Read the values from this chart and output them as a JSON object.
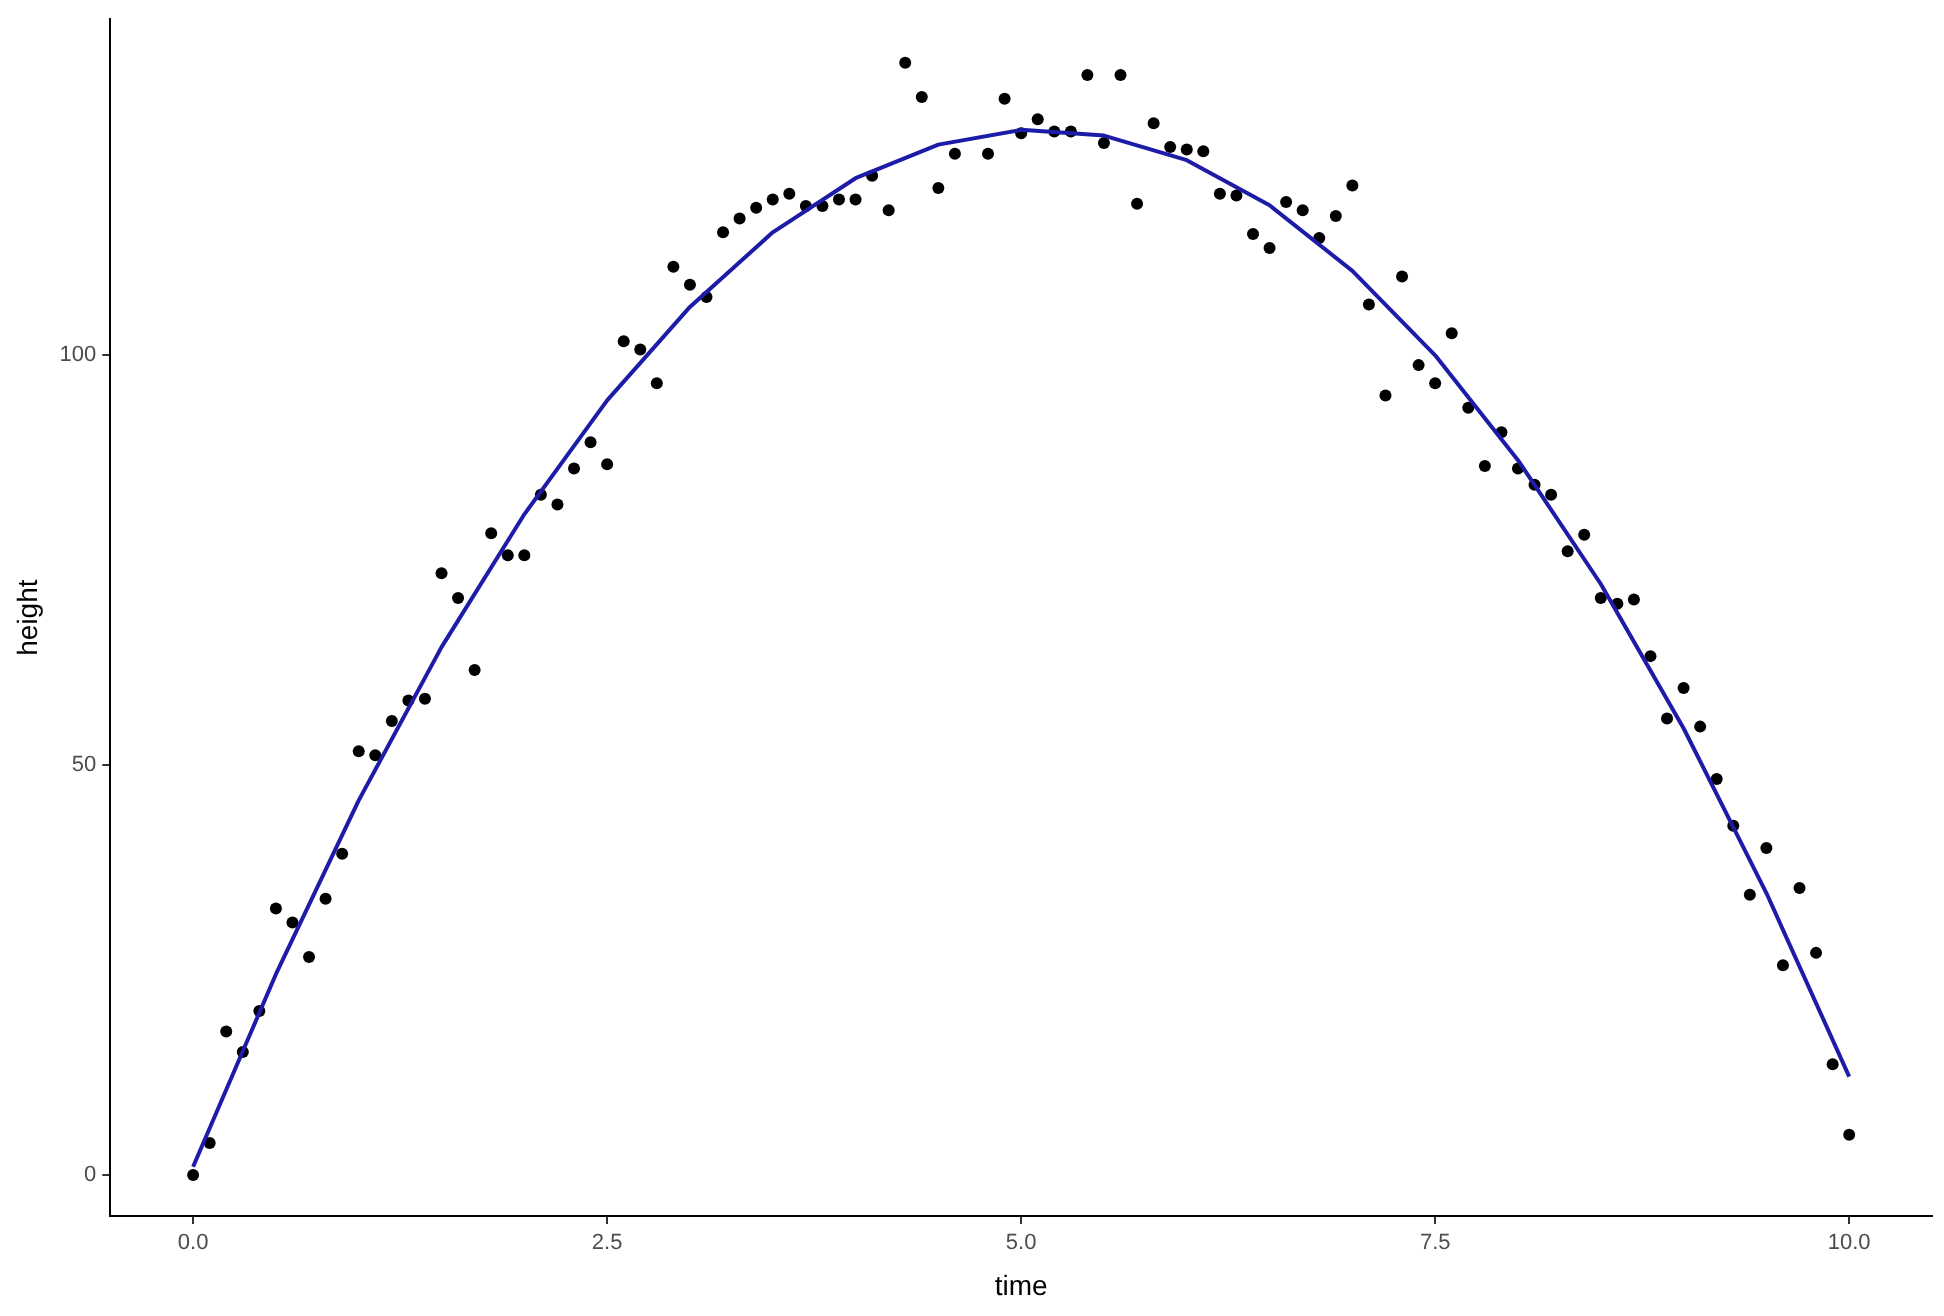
{
  "chart_data": {
    "type": "scatter",
    "xlabel": "time",
    "ylabel": "height",
    "xlim": [
      -0.5,
      10.5
    ],
    "ylim": [
      -5,
      141
    ],
    "xticks": [
      {
        "value": 0,
        "label": "0.0"
      },
      {
        "value": 2.5,
        "label": "2.5"
      },
      {
        "value": 5,
        "label": "5.0"
      },
      {
        "value": 7.5,
        "label": "7.5"
      },
      {
        "value": 10,
        "label": "10.0"
      }
    ],
    "yticks": [
      0,
      50,
      100
    ],
    "grid": false,
    "legend": false,
    "series": [
      {
        "type": "scatter",
        "color": "#000000",
        "marker": "circle",
        "x": [
          0,
          0.1,
          0.2,
          0.3,
          0.4,
          0.5,
          0.6,
          0.7,
          0.8,
          0.9,
          1,
          1.1,
          1.2,
          1.3,
          1.4,
          1.5,
          1.6,
          1.7,
          1.8,
          1.9,
          2,
          2.1,
          2.2,
          2.3,
          2.4,
          2.5,
          2.6,
          2.7,
          2.8,
          2.9,
          3,
          3.1,
          3.2,
          3.3,
          3.4,
          3.5,
          3.6,
          3.7,
          3.8,
          3.9,
          4,
          4.1,
          4.2,
          4.3,
          4.4,
          4.5,
          4.6,
          4.8,
          4.9,
          5,
          5.1,
          5.2,
          5.3,
          5.4,
          5.5,
          5.6,
          5.7,
          5.8,
          5.9,
          6,
          6.1,
          6.2,
          6.3,
          6.4,
          6.5,
          6.6,
          6.7,
          6.8,
          6.9,
          7,
          7.1,
          7.2,
          7.3,
          7.4,
          7.5,
          7.6,
          7.7,
          7.8,
          7.9,
          8,
          8.1,
          8.2,
          8.3,
          8.4,
          8.5,
          8.6,
          8.7,
          8.8,
          8.9,
          9,
          9.1,
          9.2,
          9.3,
          9.4,
          9.5,
          9.6,
          9.7,
          9.8,
          9.9,
          10
        ],
        "values": [
          0,
          3.9,
          17.5,
          15.0,
          20.0,
          32.5,
          30.8,
          26.6,
          33.7,
          39.2,
          51.7,
          51.2,
          55.4,
          57.9,
          58.1,
          73.4,
          70.4,
          61.6,
          78.3,
          75.6,
          75.6,
          83.0,
          81.8,
          86.2,
          89.4,
          86.7,
          101.7,
          100.7,
          96.6,
          110.8,
          108.6,
          107.1,
          115.0,
          116.7,
          118.0,
          119.0,
          119.7,
          118.2,
          118.2,
          119.0,
          119.0,
          121.9,
          117.7,
          135.7,
          131.5,
          120.4,
          124.6,
          124.6,
          131.3,
          127.1,
          128.8,
          127.3,
          127.3,
          134.2,
          125.9,
          134.2,
          118.5,
          128.3,
          125.4,
          125.1,
          124.9,
          119.7,
          119.5,
          114.8,
          113.1,
          118.7,
          117.7,
          114.3,
          117.0,
          120.7,
          106.2,
          95.1,
          109.6,
          98.8,
          96.6,
          102.7,
          93.6,
          86.5,
          90.6,
          86.2,
          84.2,
          83.0,
          76.1,
          78.1,
          70.4,
          69.7,
          70.2,
          63.3,
          55.7,
          59.4,
          54.7,
          48.3,
          42.6,
          34.2,
          39.9,
          25.6,
          35.0,
          27.1,
          13.5,
          4.9
        ]
      },
      {
        "type": "line",
        "color": "#1c1ca8",
        "marker": "none",
        "line_style": "solid",
        "x": [
          0,
          0.5,
          1,
          1.5,
          2,
          2.5,
          3,
          3.5,
          4,
          4.5,
          5,
          5.5,
          6,
          6.5,
          7,
          7.5,
          8,
          8.5,
          9,
          9.5,
          10
        ],
        "values": [
          1,
          24.5,
          45.7,
          64.4,
          80.6,
          94.5,
          105.9,
          115.0,
          121.6,
          125.7,
          127.5,
          126.8,
          123.8,
          118.3,
          110.3,
          100.0,
          87.2,
          72.1,
          54.5,
          34.4,
          12.0
        ]
      }
    ]
  }
}
